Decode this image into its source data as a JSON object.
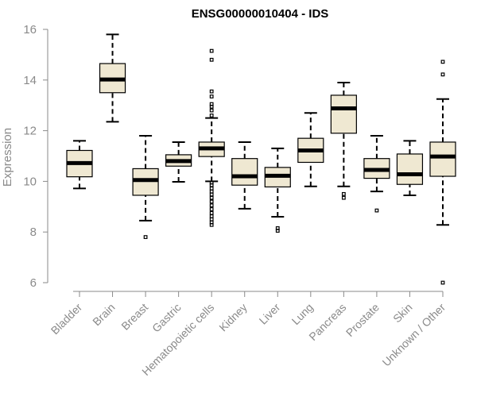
{
  "chart_data": {
    "type": "boxplot",
    "title": "ENSG00000010404 - IDS",
    "xlabel": "",
    "ylabel": "Expression",
    "ylim": [
      6,
      16
    ],
    "yticks": [
      6,
      8,
      10,
      12,
      14,
      16
    ],
    "grid": false,
    "colors": {
      "box_fill": "#efe8d2",
      "axis": "#8a8a8a",
      "ink": "#000000"
    },
    "categories": [
      "Bladder",
      "Brain",
      "Breast",
      "Gastric",
      "Hematopoietic cells",
      "Kidney",
      "Liver",
      "Lung",
      "Pancreas",
      "Prostate",
      "Skin",
      "Unknown / Other"
    ],
    "boxes": [
      {
        "name": "Bladder",
        "low": 9.72,
        "q1": 10.18,
        "median": 10.72,
        "q3": 11.22,
        "high": 11.6,
        "outliers": []
      },
      {
        "name": "Brain",
        "low": 12.35,
        "q1": 13.5,
        "median": 14.02,
        "q3": 14.65,
        "high": 15.8,
        "outliers": []
      },
      {
        "name": "Breast",
        "low": 8.45,
        "q1": 9.45,
        "median": 10.05,
        "q3": 10.5,
        "high": 11.8,
        "outliers": [
          7.8
        ]
      },
      {
        "name": "Gastric",
        "low": 9.98,
        "q1": 10.6,
        "median": 10.8,
        "q3": 11.05,
        "high": 11.55,
        "outliers": []
      },
      {
        "name": "Hematopoietic cells",
        "low": 10.0,
        "q1": 10.98,
        "median": 11.3,
        "q3": 11.55,
        "high": 12.5,
        "outliers": [
          15.15,
          14.8,
          13.55,
          13.35,
          13.05,
          12.95,
          12.8,
          12.6,
          9.95,
          9.85,
          9.72,
          9.6,
          9.48,
          9.35,
          9.2,
          9.05,
          8.9,
          8.75,
          8.62,
          8.5,
          8.38,
          8.28
        ]
      },
      {
        "name": "Kidney",
        "low": 8.92,
        "q1": 9.85,
        "median": 10.2,
        "q3": 10.9,
        "high": 11.55,
        "outliers": []
      },
      {
        "name": "Liver",
        "low": 8.6,
        "q1": 9.78,
        "median": 10.22,
        "q3": 10.55,
        "high": 11.3,
        "outliers": [
          8.15,
          8.05
        ]
      },
      {
        "name": "Lung",
        "low": 9.8,
        "q1": 10.75,
        "median": 11.22,
        "q3": 11.7,
        "high": 12.7,
        "outliers": []
      },
      {
        "name": "Pancreas",
        "low": 9.8,
        "q1": 11.9,
        "median": 12.88,
        "q3": 13.4,
        "high": 13.9,
        "outliers": [
          9.5,
          9.35
        ]
      },
      {
        "name": "Prostate",
        "low": 9.6,
        "q1": 10.12,
        "median": 10.45,
        "q3": 10.9,
        "high": 11.8,
        "outliers": [
          8.85
        ]
      },
      {
        "name": "Skin",
        "low": 9.45,
        "q1": 9.88,
        "median": 10.28,
        "q3": 11.08,
        "high": 11.6,
        "outliers": []
      },
      {
        "name": "Unknown / Other",
        "low": 8.28,
        "q1": 10.2,
        "median": 10.98,
        "q3": 11.55,
        "high": 13.25,
        "outliers": [
          14.72,
          14.22,
          6.0
        ]
      }
    ]
  }
}
